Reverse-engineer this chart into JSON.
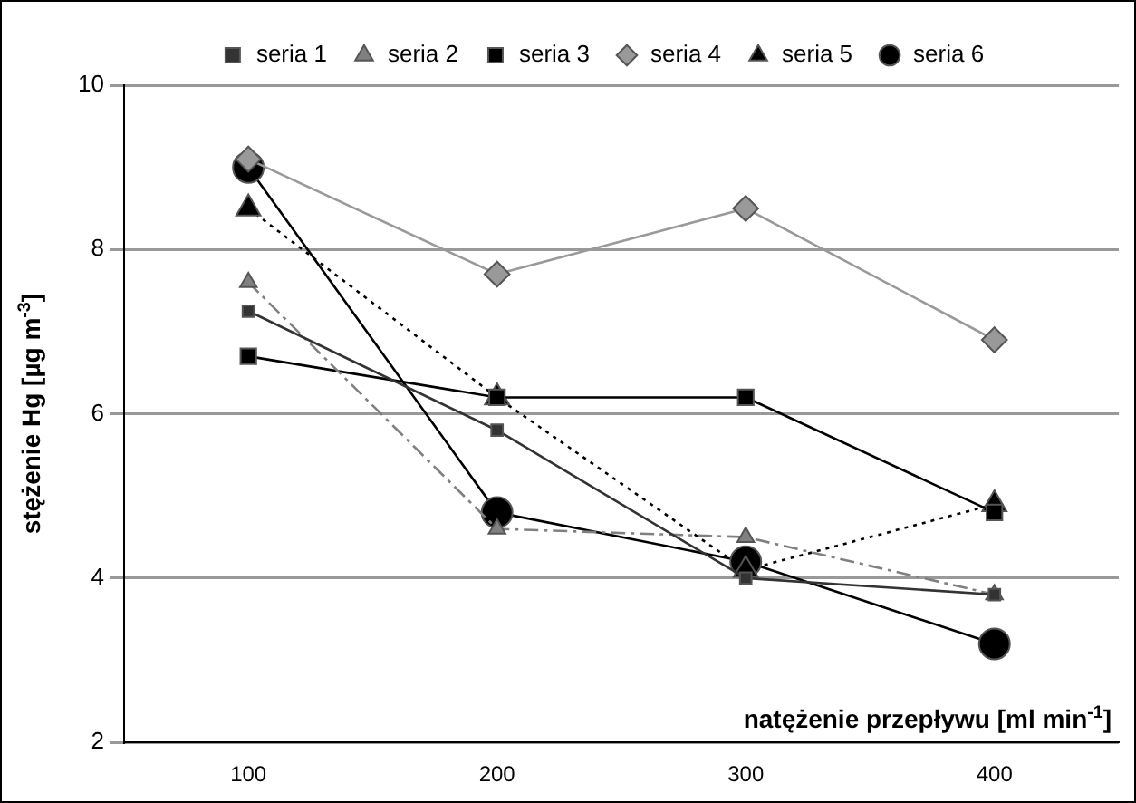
{
  "chart_data": {
    "type": "line",
    "xlabel": "natężenie przepływu [ml min$^{-1}$]",
    "ylabel": "stężenie Hg [µg m$^{-3}$]",
    "categories": [
      "100",
      "200",
      "300",
      "400"
    ],
    "ylim": [
      2,
      10
    ],
    "yticks": [
      2,
      4,
      6,
      8,
      10
    ],
    "grid": "y",
    "legend": "top",
    "series": [
      {
        "name": "seria 1",
        "color": "#333333",
        "marker": "square",
        "line_style": "solid",
        "values": [
          7.25,
          5.8,
          4.0,
          3.8
        ]
      },
      {
        "name": "seria 2",
        "color": "#808080",
        "marker": "triangle",
        "line_style": "dashed",
        "values": [
          7.6,
          4.6,
          4.5,
          3.8
        ]
      },
      {
        "name": "seria 3",
        "color": "#000000",
        "marker": "square",
        "line_style": "solid",
        "values": [
          6.7,
          6.2,
          6.2,
          4.8
        ]
      },
      {
        "name": "seria 4",
        "color": "#999999",
        "marker": "diamond",
        "line_style": "solid",
        "values": [
          9.1,
          7.7,
          8.5,
          6.9
        ]
      },
      {
        "name": "seria 5",
        "color": "#000000",
        "marker": "triangle",
        "line_style": "dotted",
        "values": [
          8.5,
          6.2,
          4.1,
          4.9
        ]
      },
      {
        "name": "seria 6",
        "color": "#000000",
        "marker": "circle",
        "line_style": "solid",
        "values": [
          9.0,
          4.8,
          4.2,
          3.2
        ]
      }
    ]
  }
}
